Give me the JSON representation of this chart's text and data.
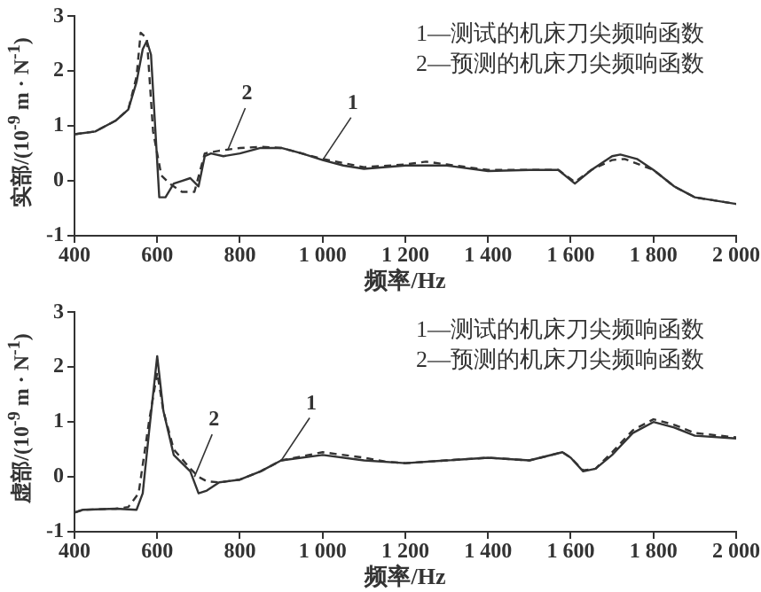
{
  "chart_data": [
    {
      "type": "line",
      "xlabel": "频率/Hz",
      "ylabel": "实部/(10$^{-9}$ m · N$^{-1}$)",
      "grid": false,
      "marker": "none",
      "xlim": [
        400,
        2000
      ],
      "xticks": [
        400,
        600,
        800,
        {
          "value": 1000,
          "label": "1 000"
        },
        {
          "value": 1200,
          "label": "1 200"
        },
        {
          "value": 1400,
          "label": "1 400"
        },
        {
          "value": 1600,
          "label": "1 600"
        },
        {
          "value": 1800,
          "label": "1 800"
        },
        {
          "value": 2000,
          "label": "2 000"
        }
      ],
      "ylim": [
        -1,
        3
      ],
      "yticks": [
        -1,
        0,
        1,
        2,
        3
      ],
      "annotations": [
        {
          "text": "1",
          "x": 1000,
          "y": 0.38
        },
        {
          "text": "2",
          "x": 770,
          "y": 0.55
        },
        "1—测试的机床刀尖频响函数",
        "2—预测的机床刀尖频响函数"
      ],
      "series": [
        {
          "color": "#333333",
          "line_style": "solid",
          "x": [
            400,
            450,
            500,
            530,
            550,
            565,
            575,
            585,
            595,
            605,
            620,
            640,
            660,
            680,
            700,
            715,
            730,
            760,
            800,
            850,
            900,
            950,
            1000,
            1050,
            1100,
            1200,
            1300,
            1400,
            1500,
            1570,
            1610,
            1650,
            1700,
            1720,
            1760,
            1800,
            1850,
            1900,
            2000
          ],
          "values": [
            0.85,
            0.9,
            1.1,
            1.3,
            1.8,
            2.4,
            2.55,
            2.3,
            1.0,
            -0.3,
            -0.3,
            -0.05,
            0.0,
            0.05,
            -0.1,
            0.45,
            0.5,
            0.45,
            0.5,
            0.6,
            0.6,
            0.5,
            0.38,
            0.28,
            0.22,
            0.28,
            0.28,
            0.18,
            0.2,
            0.2,
            -0.05,
            0.2,
            0.45,
            0.48,
            0.4,
            0.2,
            -0.1,
            -0.3,
            -0.42
          ]
        },
        {
          "color": "#333333",
          "line_style": "dashed",
          "x": [
            400,
            450,
            500,
            530,
            550,
            560,
            575,
            590,
            610,
            630,
            660,
            690,
            715,
            750,
            800,
            850,
            900,
            1000,
            1100,
            1200,
            1250,
            1300,
            1400,
            1500,
            1570,
            1610,
            1650,
            1700,
            1730,
            1800,
            1850,
            1900,
            2000
          ],
          "values": [
            0.85,
            0.9,
            1.1,
            1.3,
            1.9,
            2.7,
            2.6,
            0.9,
            0.1,
            -0.05,
            -0.2,
            -0.2,
            0.5,
            0.55,
            0.6,
            0.62,
            0.6,
            0.4,
            0.25,
            0.3,
            0.35,
            0.3,
            0.2,
            0.2,
            0.2,
            -0.02,
            0.2,
            0.38,
            0.4,
            0.2,
            -0.1,
            -0.3,
            -0.42
          ]
        }
      ]
    },
    {
      "type": "line",
      "xlabel": "频率/Hz",
      "ylabel": "虚部/(10$^{-9}$ m · N$^{-1}$)",
      "grid": false,
      "marker": "none",
      "xlim": [
        400,
        2000
      ],
      "xticks": [
        400,
        600,
        800,
        {
          "value": 1000,
          "label": "1 000"
        },
        {
          "value": 1200,
          "label": "1 200"
        },
        {
          "value": 1400,
          "label": "1 400"
        },
        {
          "value": 1600,
          "label": "1 600"
        },
        {
          "value": 1800,
          "label": "1 800"
        },
        {
          "value": 2000,
          "label": "2 000"
        }
      ],
      "ylim": [
        -1,
        3
      ],
      "yticks": [
        -1,
        0,
        1,
        2,
        3
      ],
      "annotations": [
        {
          "text": "1",
          "x": 900,
          "y": 0.3
        },
        {
          "text": "2",
          "x": 690,
          "y": 0.0
        },
        "1—测试的机床刀尖频响函数",
        "2—预测的机床刀尖频响函数"
      ],
      "series": [
        {
          "color": "#333333",
          "line_style": "solid",
          "x": [
            400,
            420,
            500,
            550,
            565,
            580,
            600,
            615,
            640,
            680,
            700,
            720,
            750,
            800,
            850,
            900,
            1000,
            1100,
            1200,
            1300,
            1400,
            1500,
            1580,
            1600,
            1630,
            1660,
            1700,
            1750,
            1800,
            1850,
            1900,
            2000
          ],
          "values": [
            -0.65,
            -0.6,
            -0.58,
            -0.6,
            -0.3,
            0.8,
            2.2,
            1.2,
            0.4,
            0.1,
            -0.3,
            -0.25,
            -0.1,
            -0.05,
            0.1,
            0.3,
            0.4,
            0.3,
            0.25,
            0.3,
            0.35,
            0.3,
            0.45,
            0.35,
            0.1,
            0.15,
            0.4,
            0.8,
            1.0,
            0.9,
            0.75,
            0.7
          ]
        },
        {
          "color": "#333333",
          "line_style": "dashed",
          "x": [
            400,
            420,
            500,
            530,
            555,
            580,
            600,
            615,
            640,
            680,
            700,
            720,
            750,
            800,
            850,
            900,
            1000,
            1100,
            1150,
            1200,
            1300,
            1400,
            1500,
            1580,
            1600,
            1630,
            1660,
            1700,
            1750,
            1800,
            1850,
            1900,
            2000
          ],
          "values": [
            -0.65,
            -0.6,
            -0.58,
            -0.55,
            -0.3,
            1.0,
            1.9,
            1.2,
            0.5,
            0.15,
            0.0,
            -0.08,
            -0.1,
            -0.05,
            0.1,
            0.3,
            0.45,
            0.35,
            0.28,
            0.25,
            0.3,
            0.35,
            0.3,
            0.45,
            0.35,
            0.12,
            0.15,
            0.45,
            0.85,
            1.05,
            0.95,
            0.8,
            0.72
          ]
        }
      ]
    }
  ]
}
